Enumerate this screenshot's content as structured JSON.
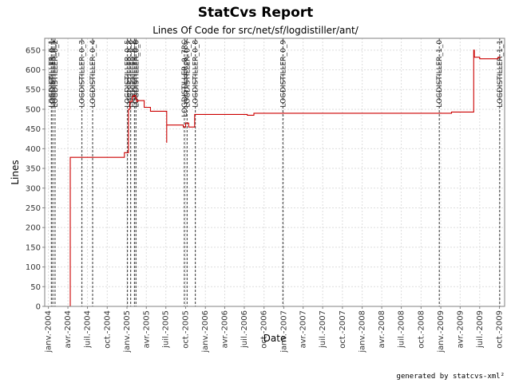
{
  "chart_data": {
    "type": "line",
    "title": "StatCvs Report",
    "subtitle": "Lines Of Code for src/net/sf/logdistiller/ant/",
    "xlabel": "Date",
    "ylabel": "Lines",
    "ylim": [
      0,
      680
    ],
    "y_ticks": [
      0,
      50,
      100,
      150,
      200,
      250,
      300,
      350,
      400,
      450,
      500,
      550,
      600,
      650
    ],
    "xlim": [
      "2003-12-15",
      "2009-10-25"
    ],
    "x_ticks": [
      {
        "date": "2004-01-01",
        "label": "janv.-2004"
      },
      {
        "date": "2004-04-01",
        "label": "avr.-2004"
      },
      {
        "date": "2004-07-01",
        "label": "juil.-2004"
      },
      {
        "date": "2004-10-01",
        "label": "oct.-2004"
      },
      {
        "date": "2005-01-01",
        "label": "janv.-2005"
      },
      {
        "date": "2005-04-01",
        "label": "avr.-2005"
      },
      {
        "date": "2005-07-01",
        "label": "juil.-2005"
      },
      {
        "date": "2005-10-01",
        "label": "oct.-2005"
      },
      {
        "date": "2006-01-01",
        "label": "janv.-2006"
      },
      {
        "date": "2006-04-01",
        "label": "avr.-2006"
      },
      {
        "date": "2006-07-01",
        "label": "juil.-2006"
      },
      {
        "date": "2006-10-01",
        "label": "oct.-2006"
      },
      {
        "date": "2007-01-01",
        "label": "janv.-2007"
      },
      {
        "date": "2007-04-01",
        "label": "avr.-2007"
      },
      {
        "date": "2007-07-01",
        "label": "juil.-2007"
      },
      {
        "date": "2007-10-01",
        "label": "oct.-2007"
      },
      {
        "date": "2008-01-01",
        "label": "janv.-2008"
      },
      {
        "date": "2008-04-01",
        "label": "avr.-2008"
      },
      {
        "date": "2008-07-01",
        "label": "juil.-2008"
      },
      {
        "date": "2008-10-01",
        "label": "oct.-2008"
      },
      {
        "date": "2009-01-01",
        "label": "janv.-2009"
      },
      {
        "date": "2009-04-01",
        "label": "avr.-2009"
      },
      {
        "date": "2009-07-01",
        "label": "juil.-2009"
      },
      {
        "date": "2009-10-01",
        "label": "oct.-2009"
      }
    ],
    "grid": true,
    "series": [
      {
        "color": "#cc0000",
        "step": true,
        "points": [
          [
            "2004-04-10",
            0
          ],
          [
            "2004-04-12",
            378
          ],
          [
            "2004-12-15",
            378
          ],
          [
            "2004-12-20",
            390
          ],
          [
            "2005-01-05",
            390
          ],
          [
            "2005-01-08",
            500
          ],
          [
            "2005-01-15",
            520
          ],
          [
            "2005-01-25",
            532
          ],
          [
            "2005-02-01",
            535
          ],
          [
            "2005-02-10",
            528
          ],
          [
            "2005-02-15",
            520
          ],
          [
            "2005-02-20",
            522
          ],
          [
            "2005-03-22",
            505
          ],
          [
            "2005-04-20",
            495
          ],
          [
            "2005-07-05",
            415
          ],
          [
            "2005-07-05",
            460
          ],
          [
            "2005-09-20",
            455
          ],
          [
            "2005-10-01",
            465
          ],
          [
            "2005-10-15",
            455
          ],
          [
            "2005-11-12",
            487
          ],
          [
            "2006-07-15",
            485
          ],
          [
            "2006-08-15",
            490
          ],
          [
            "2009-02-20",
            493
          ],
          [
            "2009-06-01",
            493
          ],
          [
            "2009-06-03",
            650
          ],
          [
            "2009-06-06",
            632
          ],
          [
            "2009-07-01",
            628
          ],
          [
            "2009-09-20",
            628
          ],
          [
            "2009-09-25",
            632
          ],
          [
            "2009-10-05",
            632
          ]
        ]
      }
    ],
    "markers": [
      {
        "date": "2004-01-15",
        "label": "LOGDISTILLER_0_1"
      },
      {
        "date": "2004-01-22",
        "label": "LOGDISTILLER_0_1"
      },
      {
        "date": "2004-02-01",
        "label": "LOGDISTILLER_0_2"
      },
      {
        "date": "2004-06-05",
        "label": "LOGDISTILLER_0_3"
      },
      {
        "date": "2004-07-25",
        "label": "LOGDISTILLER_0_4"
      },
      {
        "date": "2005-01-03",
        "label": "LOGDISTILLER_0_5"
      },
      {
        "date": "2005-01-18",
        "label": "LOGDISTILLER_0_6"
      },
      {
        "date": "2005-02-05",
        "label": "LOGDISTILLER_0_6"
      },
      {
        "date": "2005-02-12",
        "label": "LOGDISTILLER_0_6"
      },
      {
        "date": "2005-09-25",
        "label": "LOGDISTILLER_0_7RC"
      },
      {
        "date": "2005-10-08",
        "label": "LOGDISTILLER_0_7"
      },
      {
        "date": "2005-11-15",
        "label": "LOGDISTILLER_0_8"
      },
      {
        "date": "2006-12-28",
        "label": "LOGDISTILLER_0_9"
      },
      {
        "date": "2008-12-25",
        "label": "LOGDISTILLER_1_0"
      },
      {
        "date": "2009-10-02",
        "label": "LOGDISTILLER_1_1"
      }
    ],
    "footer": "generated by statcvs-xml²"
  }
}
